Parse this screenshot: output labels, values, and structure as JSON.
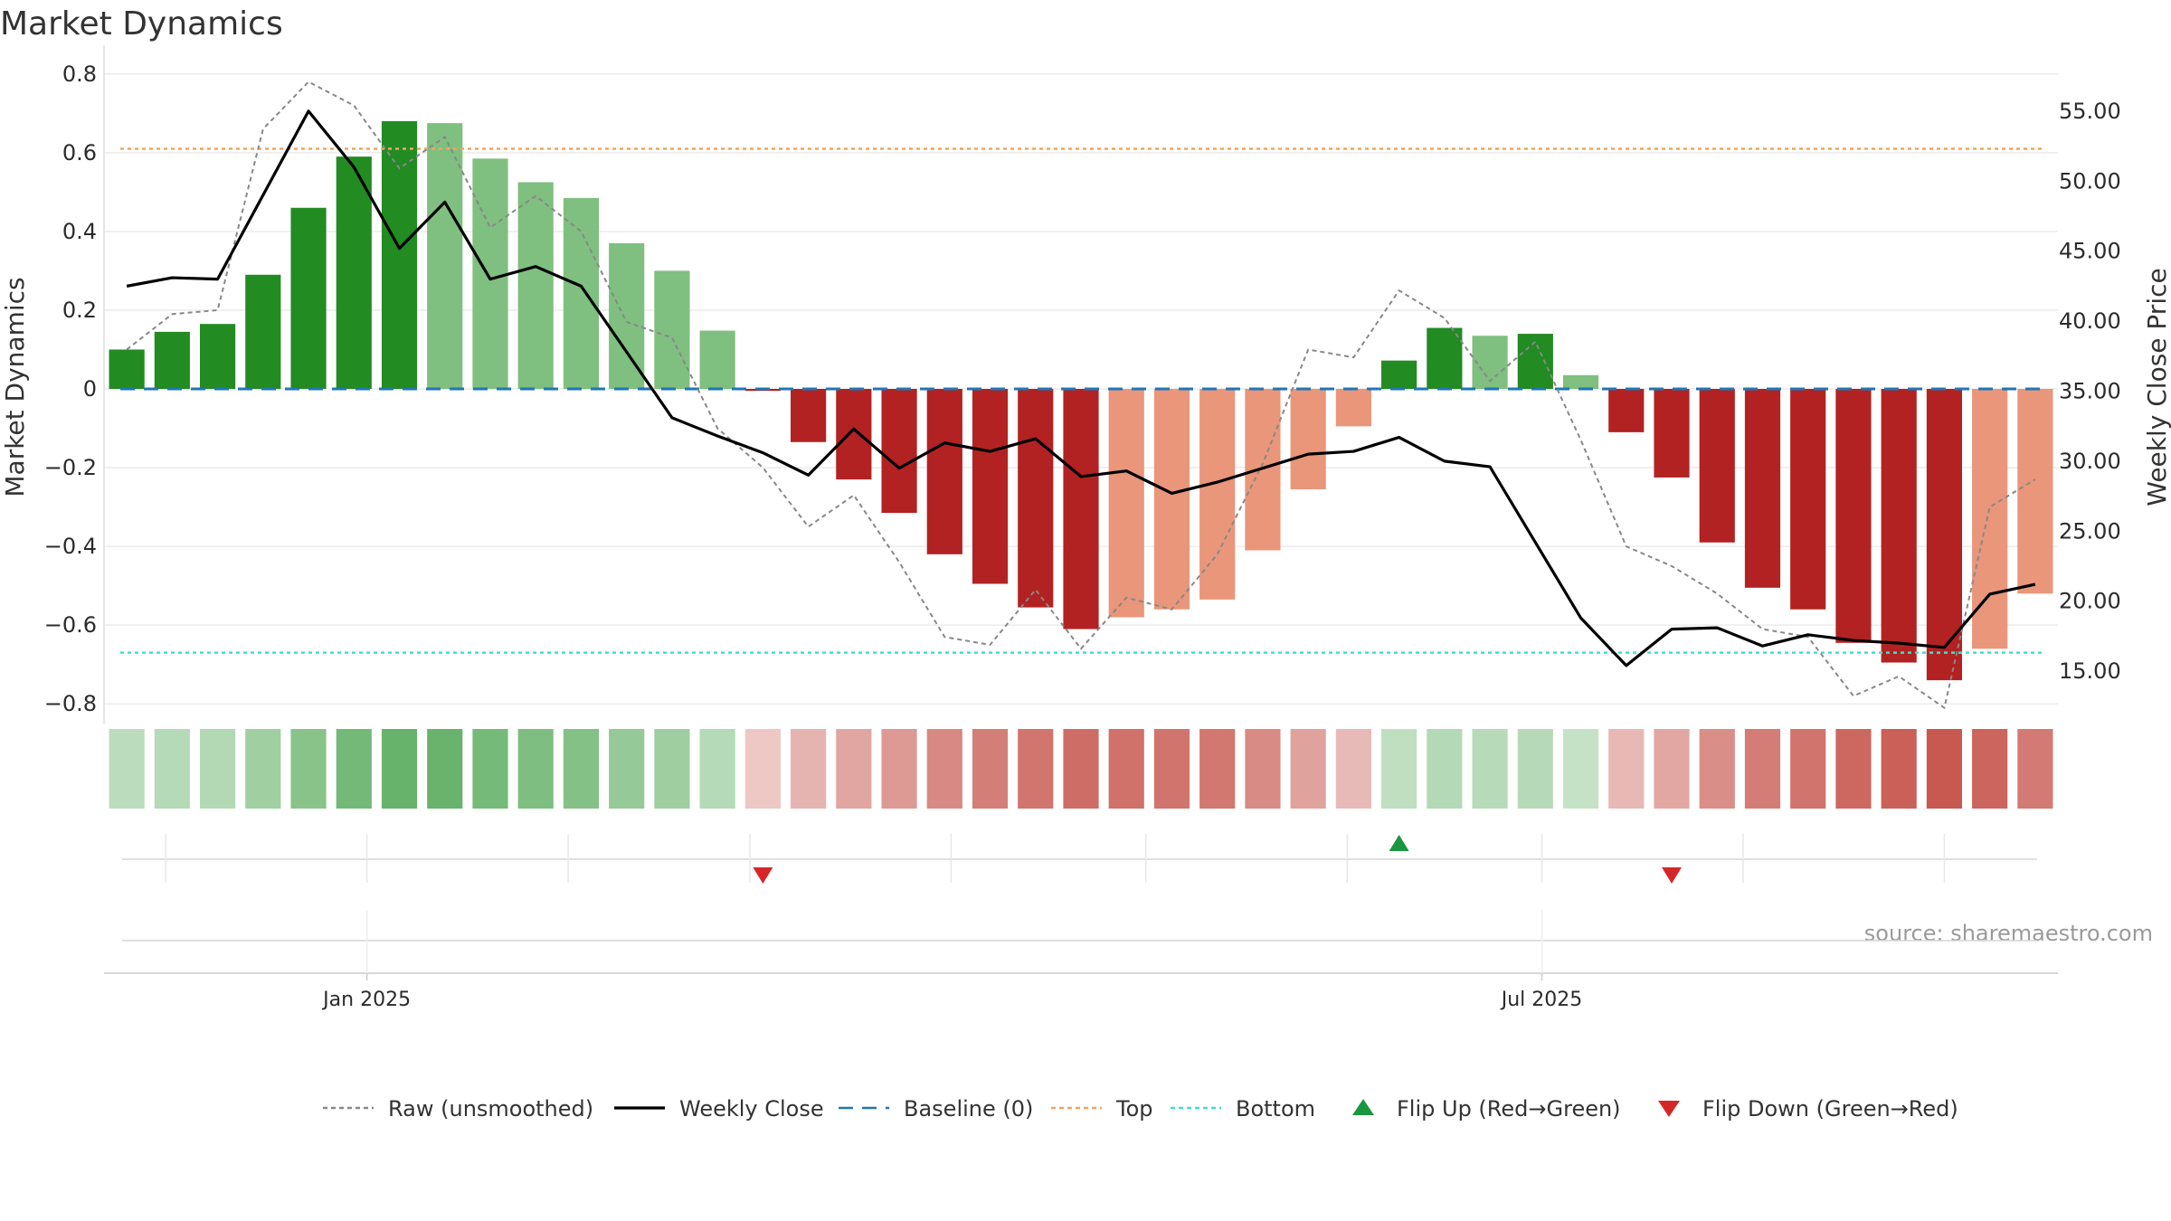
{
  "chart_data": {
    "type": "bar",
    "title": "Market Dynamics",
    "ylabel_left": "Market Dynamics",
    "ylabel_right": "Weekly Close Price",
    "ylim_left": [
      -0.85,
      0.85
    ],
    "ylim_right": [
      11.26,
      59.06
    ],
    "yticks_left": [
      "0.8",
      "0.6",
      "0.4",
      "0.2",
      "0",
      "−0.2",
      "−0.4",
      "−0.6",
      "−0.8"
    ],
    "yticks_left_values": [
      0.8,
      0.6,
      0.4,
      0.2,
      0,
      -0.2,
      -0.4,
      -0.6,
      -0.8
    ],
    "yticks_right": [
      "55.00",
      "50.00",
      "45.00",
      "40.00",
      "35.00",
      "30.00",
      "25.00",
      "20.00",
      "15.00"
    ],
    "yticks_right_values": [
      55,
      50,
      45,
      40,
      35,
      30,
      25,
      20,
      15
    ],
    "xticks": [
      "Jan 2025",
      "Jul 2025"
    ],
    "xtick_dates": [
      "2025-01-01",
      "2025-07-01"
    ],
    "weeks": [
      "2024-11-25",
      "2024-12-02",
      "2024-12-09",
      "2024-12-16",
      "2024-12-23",
      "2024-12-30",
      "2025-01-06",
      "2025-01-13",
      "2025-01-20",
      "2025-01-27",
      "2025-02-03",
      "2025-02-10",
      "2025-02-17",
      "2025-02-24",
      "2025-03-03",
      "2025-03-10",
      "2025-03-17",
      "2025-03-24",
      "2025-03-31",
      "2025-04-07",
      "2025-04-14",
      "2025-04-21",
      "2025-04-28",
      "2025-05-05",
      "2025-05-12",
      "2025-05-19",
      "2025-05-26",
      "2025-06-02",
      "2025-06-09",
      "2025-06-16",
      "2025-06-23",
      "2025-06-30",
      "2025-07-07",
      "2025-07-14",
      "2025-07-21",
      "2025-07-28",
      "2025-08-04",
      "2025-08-11",
      "2025-08-18",
      "2025-08-25",
      "2025-09-01",
      "2025-09-08",
      "2025-09-15"
    ],
    "series": [
      {
        "name": "Market Dynamics",
        "type": "bar",
        "values": [
          0.1,
          0.145,
          0.165,
          0.29,
          0.46,
          0.59,
          0.68,
          0.675,
          0.585,
          0.525,
          0.485,
          0.37,
          0.3,
          0.148,
          -0.005,
          -0.135,
          -0.23,
          -0.315,
          -0.42,
          -0.495,
          -0.555,
          -0.61,
          -0.58,
          -0.56,
          -0.535,
          -0.41,
          -0.255,
          -0.095,
          0.072,
          0.155,
          0.135,
          0.14,
          0.035,
          -0.11,
          -0.225,
          -0.39,
          -0.505,
          -0.56,
          -0.645,
          -0.695,
          -0.74,
          -0.66,
          -0.52
        ],
        "bar_colors": [
          "#228b22",
          "#228b22",
          "#228b22",
          "#228b22",
          "#228b22",
          "#228b22",
          "#228b22",
          "#7fbf7f",
          "#7fbf7f",
          "#7fbf7f",
          "#7fbf7f",
          "#7fbf7f",
          "#7fbf7f",
          "#7fbf7f",
          "#b22222",
          "#b22222",
          "#b22222",
          "#b22222",
          "#b22222",
          "#b22222",
          "#b22222",
          "#b22222",
          "#e9967a",
          "#e9967a",
          "#e9967a",
          "#e9967a",
          "#e9967a",
          "#e9967a",
          "#228b22",
          "#228b22",
          "#7fbf7f",
          "#228b22",
          "#7fbf7f",
          "#b22222",
          "#b22222",
          "#b22222",
          "#b22222",
          "#b22222",
          "#b22222",
          "#b22222",
          "#b22222",
          "#e9967a",
          "#e9967a"
        ]
      },
      {
        "name": "Raw (unsmoothed)",
        "type": "line",
        "style": "dotted",
        "color": "#888888",
        "values": [
          0.1,
          0.19,
          0.2,
          0.66,
          0.78,
          0.72,
          0.56,
          0.64,
          0.41,
          0.49,
          0.4,
          0.17,
          0.13,
          -0.1,
          -0.2,
          -0.35,
          -0.27,
          -0.44,
          -0.63,
          -0.65,
          -0.51,
          -0.66,
          -0.53,
          -0.56,
          -0.42,
          -0.19,
          0.1,
          0.08,
          0.25,
          0.18,
          0.02,
          0.12,
          -0.13,
          -0.4,
          -0.45,
          -0.52,
          -0.61,
          -0.63,
          -0.78,
          -0.73,
          -0.81,
          -0.3,
          -0.23
        ]
      },
      {
        "name": "Weekly Close",
        "type": "line",
        "axis": "right",
        "color": "#000000",
        "values": [
          42.5,
          43.1,
          43.0,
          49.0,
          55.0,
          51.0,
          45.2,
          48.5,
          43.0,
          43.9,
          42.5,
          37.8,
          33.1,
          31.8,
          30.6,
          29.0,
          32.3,
          29.5,
          31.3,
          30.7,
          31.6,
          28.9,
          29.3,
          27.7,
          28.5,
          29.5,
          30.5,
          30.7,
          31.7,
          30.0,
          29.6,
          24.2,
          18.8,
          15.4,
          18.0,
          18.1,
          16.8,
          17.6,
          17.2,
          17.0,
          16.7,
          20.5,
          21.2
        ]
      },
      {
        "name": "Baseline (0)",
        "type": "hline",
        "value": 0,
        "color": "#1f77b4",
        "style": "dashed"
      },
      {
        "name": "Top",
        "type": "hline",
        "value": 0.61,
        "color": "#f4a460",
        "style": "dotted"
      },
      {
        "name": "Bottom",
        "type": "hline",
        "value": -0.67,
        "color": "#40e0d0",
        "style": "dotted"
      },
      {
        "name": "Flip Up (Red→Green)",
        "type": "marker",
        "marker": "triangle-up",
        "color": "#1a9641",
        "dates": [
          "2025-06-09"
        ]
      },
      {
        "name": "Flip Down (Green→Red)",
        "type": "marker",
        "marker": "triangle-down",
        "color": "#d62728",
        "dates": [
          "2025-03-03",
          "2025-07-21"
        ]
      }
    ],
    "heatmap_strip": {
      "type": "heatmap",
      "values": [
        0.1,
        0.145,
        0.165,
        0.29,
        0.46,
        0.59,
        0.68,
        0.675,
        0.585,
        0.525,
        0.485,
        0.37,
        0.3,
        0.148,
        -0.005,
        -0.135,
        -0.23,
        -0.315,
        -0.42,
        -0.495,
        -0.555,
        -0.61,
        -0.58,
        -0.56,
        -0.535,
        -0.41,
        -0.255,
        -0.095,
        0.072,
        0.155,
        0.135,
        0.14,
        0.035,
        -0.11,
        -0.225,
        -0.39,
        -0.505,
        -0.56,
        -0.645,
        -0.695,
        -0.74,
        -0.66,
        -0.52
      ]
    },
    "legend": {
      "placement": "bottom",
      "items": [
        {
          "label": "Raw (unsmoothed)",
          "kind": "dotted-line",
          "color": "#888888"
        },
        {
          "label": "Weekly Close",
          "kind": "line",
          "color": "#000000"
        },
        {
          "label": "Baseline (0)",
          "kind": "dashed-line",
          "color": "#1f77b4"
        },
        {
          "label": "Top",
          "kind": "dotted-line",
          "color": "#f4a460"
        },
        {
          "label": "Bottom",
          "kind": "dotted-line",
          "color": "#40e0d0"
        },
        {
          "label": "Flip Up (Red→Green)",
          "kind": "triangle-up",
          "color": "#1a9641"
        },
        {
          "label": "Flip Down (Green→Red)",
          "kind": "triangle-down",
          "color": "#d62728"
        }
      ]
    },
    "source": "source: sharemaestro.com",
    "grid": true
  }
}
